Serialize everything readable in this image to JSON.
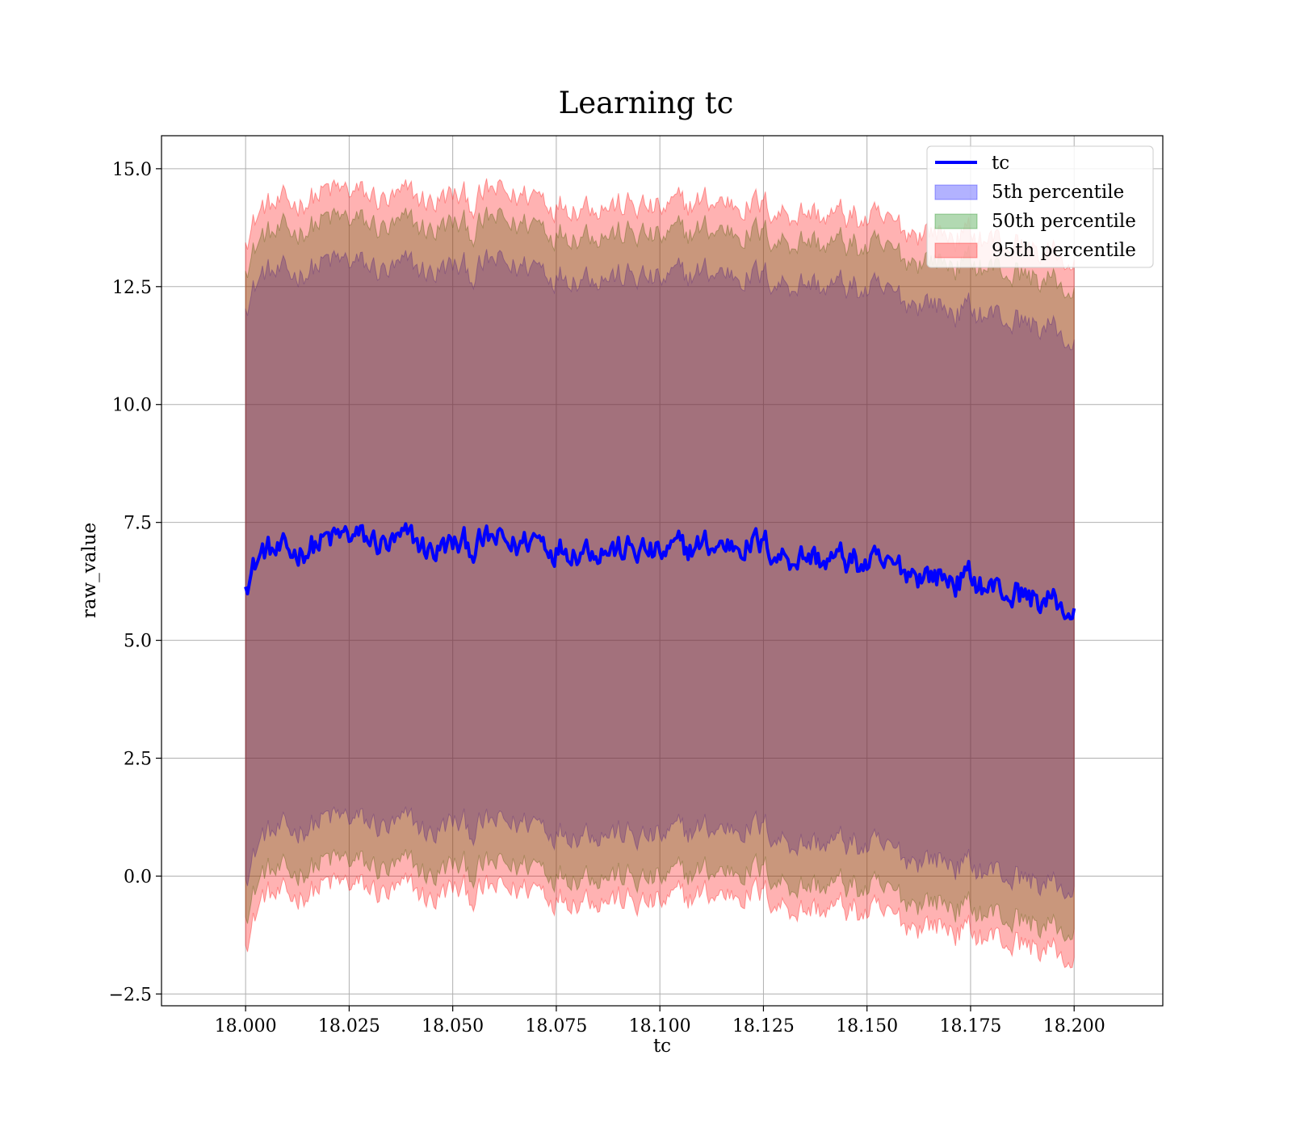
{
  "chart_data": {
    "type": "area",
    "title": "Learning tc",
    "xlabel": "tc",
    "ylabel": "raw_value",
    "xlim": [
      17.9797,
      18.2214
    ],
    "ylim": [
      -2.75,
      15.7
    ],
    "x_ticks": [
      18.0,
      18.025,
      18.05,
      18.075,
      18.1,
      18.125,
      18.15,
      18.175,
      18.2
    ],
    "x_tick_labels": [
      "18.000",
      "18.025",
      "18.050",
      "18.075",
      "18.100",
      "18.125",
      "18.150",
      "18.175",
      "18.200"
    ],
    "y_ticks": [
      -2.5,
      0.0,
      2.5,
      5.0,
      7.5,
      10.0,
      12.5,
      15.0
    ],
    "y_tick_labels": [
      "−2.5",
      "0.0",
      "2.5",
      "5.0",
      "7.5",
      "10.0",
      "12.5",
      "15.0"
    ],
    "grid": true,
    "legend_position": "top-right",
    "x": [
      18.0,
      18.005,
      18.01,
      18.015,
      18.02,
      18.025,
      18.03,
      18.035,
      18.04,
      18.045,
      18.05,
      18.055,
      18.06,
      18.065,
      18.07,
      18.075,
      18.08,
      18.085,
      18.09,
      18.095,
      18.1,
      18.105,
      18.11,
      18.115,
      18.12,
      18.125,
      18.13,
      18.135,
      18.14,
      18.145,
      18.15,
      18.155,
      18.16,
      18.165,
      18.17,
      18.175,
      18.18,
      18.185,
      18.19,
      18.195,
      18.2
    ],
    "series": [
      {
        "name": "tc",
        "kind": "line",
        "color": "#0000ff",
        "values": [
          6.4,
          6.9,
          6.8,
          7.0,
          7.1,
          7.2,
          7.1,
          7.0,
          7.1,
          6.9,
          7.0,
          7.0,
          7.1,
          7.0,
          7.2,
          7.0,
          7.0,
          7.0,
          6.9,
          6.9,
          6.8,
          6.9,
          7.0,
          7.0,
          7.1,
          7.0,
          6.8,
          6.8,
          6.7,
          6.7,
          6.6,
          6.5,
          6.5,
          6.4,
          6.3,
          6.3,
          6.1,
          6.0,
          5.9,
          5.8,
          5.6
        ]
      },
      {
        "name": "5th percentile",
        "kind": "band",
        "color": "#0000ff",
        "upper": [
          12.3,
          12.8,
          12.7,
          12.9,
          13.0,
          13.0,
          12.9,
          12.8,
          12.9,
          12.8,
          12.9,
          12.8,
          13.0,
          12.9,
          13.0,
          12.8,
          12.8,
          12.8,
          12.7,
          12.7,
          12.6,
          12.7,
          12.8,
          12.8,
          12.8,
          12.7,
          12.6,
          12.6,
          12.5,
          12.5,
          12.4,
          12.3,
          12.2,
          12.2,
          12.0,
          12.0,
          11.9,
          11.8,
          11.7,
          11.6,
          11.3
        ],
        "lower": [
          0.2,
          0.9,
          0.9,
          1.1,
          1.2,
          1.2,
          1.1,
          1.0,
          1.1,
          0.9,
          1.1,
          1.0,
          1.1,
          1.1,
          1.2,
          1.0,
          1.0,
          1.0,
          0.9,
          0.8,
          0.8,
          0.9,
          1.0,
          1.0,
          1.1,
          1.0,
          0.8,
          0.7,
          0.7,
          0.7,
          0.6,
          0.5,
          0.4,
          0.4,
          0.3,
          0.2,
          0.1,
          0.0,
          -0.1,
          -0.2,
          -0.3
        ]
      },
      {
        "name": "50th percentile",
        "kind": "band",
        "color": "#008000",
        "upper": [
          13.1,
          13.6,
          13.6,
          13.8,
          13.9,
          13.9,
          13.8,
          13.7,
          13.8,
          13.7,
          13.8,
          13.7,
          13.9,
          13.8,
          13.9,
          13.7,
          13.7,
          13.7,
          13.6,
          13.6,
          13.5,
          13.6,
          13.7,
          13.7,
          13.7,
          13.6,
          13.5,
          13.5,
          13.4,
          13.4,
          13.3,
          13.2,
          13.1,
          13.1,
          13.0,
          13.0,
          12.9,
          12.8,
          12.7,
          12.6,
          12.4
        ],
        "lower": [
          -0.6,
          0.1,
          0.0,
          0.2,
          0.3,
          0.3,
          0.2,
          0.1,
          0.2,
          0.0,
          0.2,
          0.1,
          0.2,
          0.2,
          0.3,
          0.1,
          0.1,
          0.1,
          0.0,
          -0.1,
          -0.1,
          0.0,
          0.1,
          0.1,
          0.2,
          0.1,
          -0.1,
          -0.2,
          -0.2,
          -0.2,
          -0.3,
          -0.4,
          -0.5,
          -0.5,
          -0.6,
          -0.7,
          -0.8,
          -0.9,
          -1.0,
          -1.1,
          -1.2
        ]
      },
      {
        "name": "95th percentile",
        "kind": "band",
        "color": "#ff0000",
        "upper": [
          13.7,
          14.2,
          14.2,
          14.4,
          14.5,
          14.5,
          14.4,
          14.3,
          14.4,
          14.3,
          14.4,
          14.3,
          14.5,
          14.4,
          14.5,
          14.3,
          14.3,
          14.3,
          14.2,
          14.2,
          14.1,
          14.2,
          14.3,
          14.3,
          14.3,
          14.2,
          14.1,
          14.1,
          14.0,
          14.0,
          13.9,
          13.8,
          13.7,
          13.7,
          13.6,
          13.6,
          13.5,
          13.4,
          13.3,
          13.2,
          13.0
        ],
        "lower": [
          -1.2,
          -0.4,
          -0.5,
          -0.3,
          -0.2,
          -0.2,
          -0.3,
          -0.4,
          -0.3,
          -0.5,
          -0.3,
          -0.4,
          -0.3,
          -0.3,
          -0.2,
          -0.4,
          -0.4,
          -0.4,
          -0.5,
          -0.6,
          -0.6,
          -0.5,
          -0.4,
          -0.4,
          -0.3,
          -0.4,
          -0.6,
          -0.7,
          -0.7,
          -0.7,
          -0.8,
          -0.9,
          -1.0,
          -1.0,
          -1.1,
          -1.2,
          -1.3,
          -1.4,
          -1.5,
          -1.6,
          -1.8
        ]
      }
    ]
  }
}
